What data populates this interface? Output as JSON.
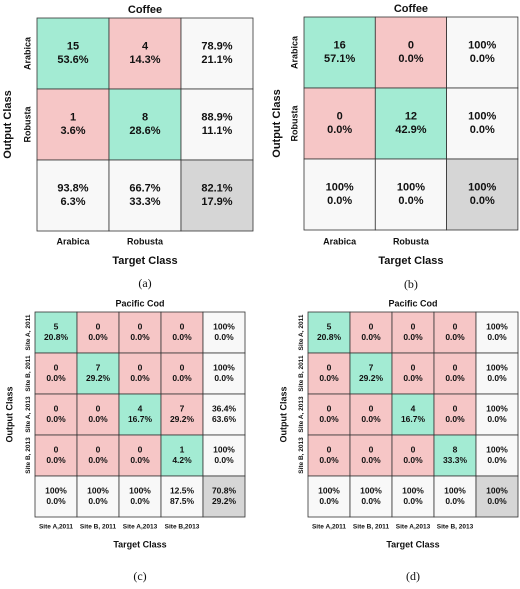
{
  "panels": [
    {
      "title": "Coffee",
      "x_label": "Target Class",
      "y_label": "Output Class",
      "row_labels": [
        "Arabica",
        "Robusta"
      ],
      "col_labels": [
        "Arabica",
        "Robusta"
      ],
      "cells": [
        [
          [
            "15",
            "53.6%"
          ],
          [
            "4",
            "14.3%"
          ]
        ],
        [
          [
            "1",
            "3.6%"
          ],
          [
            "8",
            "28.6%"
          ]
        ]
      ],
      "row_summary": [
        [
          "78.9%",
          "21.1%"
        ],
        [
          "88.9%",
          "11.1%"
        ]
      ],
      "col_summary": [
        [
          "93.8%",
          "6.3%"
        ],
        [
          "66.7%",
          "33.3%"
        ]
      ],
      "overall": [
        "82.1%",
        "17.9%"
      ],
      "caption": "(a)"
    },
    {
      "title": "Coffee",
      "x_label": "Target Class",
      "y_label": "Output Class",
      "row_labels": [
        "Arabica",
        "Robusta"
      ],
      "col_labels": [
        "Arabica",
        "Robusta"
      ],
      "cells": [
        [
          [
            "16",
            "57.1%"
          ],
          [
            "0",
            "0.0%"
          ]
        ],
        [
          [
            "0",
            "0.0%"
          ],
          [
            "12",
            "42.9%"
          ]
        ]
      ],
      "row_summary": [
        [
          "100%",
          "0.0%"
        ],
        [
          "100%",
          "0.0%"
        ]
      ],
      "col_summary": [
        [
          "100%",
          "0.0%"
        ],
        [
          "100%",
          "0.0%"
        ]
      ],
      "overall": [
        "100%",
        "0.0%"
      ],
      "caption": "(b)"
    },
    {
      "title": "Pacific Cod",
      "x_label": "Target Class",
      "y_label": "Output Class",
      "row_labels": [
        "Site A, 2011",
        "Site B, 2011",
        "Site A, 2013",
        "Site B, 2013"
      ],
      "col_labels": [
        "Site A,2011",
        "Site B, 2011",
        "Site A,2013",
        "Site B,2013"
      ],
      "cells": [
        [
          [
            "5",
            "20.8%"
          ],
          [
            "0",
            "0.0%"
          ],
          [
            "0",
            "0.0%"
          ],
          [
            "0",
            "0.0%"
          ]
        ],
        [
          [
            "0",
            "0.0%"
          ],
          [
            "7",
            "29.2%"
          ],
          [
            "0",
            "0.0%"
          ],
          [
            "0",
            "0.0%"
          ]
        ],
        [
          [
            "0",
            "0.0%"
          ],
          [
            "0",
            "0.0%"
          ],
          [
            "4",
            "16.7%"
          ],
          [
            "7",
            "29.2%"
          ]
        ],
        [
          [
            "0",
            "0.0%"
          ],
          [
            "0",
            "0.0%"
          ],
          [
            "0",
            "0.0%"
          ],
          [
            "1",
            "4.2%"
          ]
        ]
      ],
      "row_summary": [
        [
          "100%",
          "0.0%"
        ],
        [
          "100%",
          "0.0%"
        ],
        [
          "36.4%",
          "63.6%"
        ],
        [
          "100%",
          "0.0%"
        ]
      ],
      "col_summary": [
        [
          "100%",
          "0.0%"
        ],
        [
          "100%",
          "0.0%"
        ],
        [
          "100%",
          "0.0%"
        ],
        [
          "12.5%",
          "87.5%"
        ]
      ],
      "overall": [
        "70.8%",
        "29.2%"
      ],
      "caption": "(c)"
    },
    {
      "title": "Pacific Cod",
      "x_label": "Target Class",
      "y_label": "Output Class",
      "row_labels": [
        "Site A, 2011",
        "Site B, 2011",
        "Site A, 2013",
        "Site B, 2013"
      ],
      "col_labels": [
        "Site A,2011",
        "Site B, 2011",
        "Site A,2013",
        "Site B, 2013"
      ],
      "cells": [
        [
          [
            "5",
            "20.8%"
          ],
          [
            "0",
            "0.0%"
          ],
          [
            "0",
            "0.0%"
          ],
          [
            "0",
            "0.0%"
          ]
        ],
        [
          [
            "0",
            "0.0%"
          ],
          [
            "7",
            "29.2%"
          ],
          [
            "0",
            "0.0%"
          ],
          [
            "0",
            "0.0%"
          ]
        ],
        [
          [
            "0",
            "0.0%"
          ],
          [
            "0",
            "0.0%"
          ],
          [
            "4",
            "16.7%"
          ],
          [
            "0",
            "0.0%"
          ]
        ],
        [
          [
            "0",
            "0.0%"
          ],
          [
            "0",
            "0.0%"
          ],
          [
            "0",
            "0.0%"
          ],
          [
            "8",
            "33.3%"
          ]
        ]
      ],
      "row_summary": [
        [
          "100%",
          "0.0%"
        ],
        [
          "100%",
          "0.0%"
        ],
        [
          "100%",
          "0.0%"
        ],
        [
          "100%",
          "0.0%"
        ]
      ],
      "col_summary": [
        [
          "100%",
          "0.0%"
        ],
        [
          "100%",
          "0.0%"
        ],
        [
          "100%",
          "0.0%"
        ],
        [
          "100%",
          "0.0%"
        ]
      ],
      "overall": [
        "100%",
        "0.0%"
      ],
      "caption": "(d)"
    }
  ]
}
